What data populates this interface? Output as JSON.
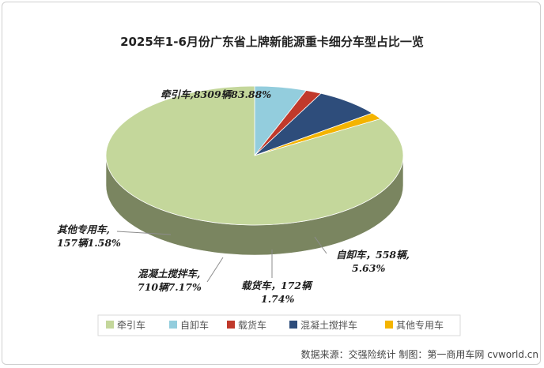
{
  "chart_data": {
    "type": "pie",
    "title": "2025年1-6月份广东省上牌新能源重卡细分车型占比一览",
    "slices": [
      {
        "name": "牵引车",
        "value": 8309,
        "percent": 83.88,
        "color": "#c4d79b",
        "label_line1": "牵引车,8309辆83.88%",
        "label_line2": ""
      },
      {
        "name": "自卸车",
        "value": 558,
        "percent": 5.63,
        "color": "#93cddd",
        "label_line1": "自卸车，558辆,",
        "label_line2": "5.63%"
      },
      {
        "name": "载货车",
        "value": 172,
        "percent": 1.74,
        "color": "#c0392b",
        "label_line1": "载货车，172辆",
        "label_line2": "1.74%"
      },
      {
        "name": "混凝土搅拌车",
        "value": 710,
        "percent": 7.17,
        "color": "#2e4d7b",
        "label_line1": "混凝土搅拌车,",
        "label_line2": "710辆7.17%"
      },
      {
        "name": "其他专用车",
        "value": 157,
        "percent": 1.58,
        "color": "#f4b400",
        "label_line1": "其他专用车,",
        "label_line2": "157辆1.58%"
      }
    ],
    "legend_position": "bottom"
  },
  "footer": {
    "source": "数据来源：交强险统计 制图：第一商用车网 cvworld.cn"
  }
}
